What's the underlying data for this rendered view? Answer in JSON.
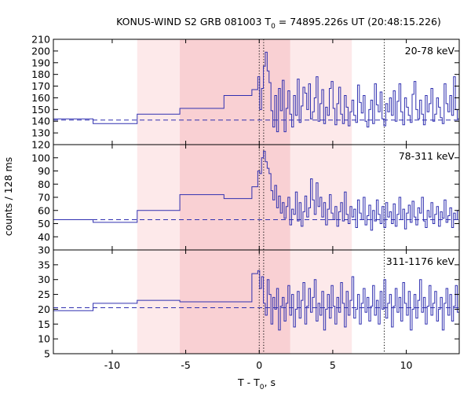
{
  "chart_data": {
    "type": "line",
    "title_main": "KONUS-WIND S2 GRB 081003 T",
    "title_sub": "0",
    "title_rest": " = 74895.226s UT (20:48:15.226)",
    "xlabel_main": "T - T",
    "xlabel_sub": "0",
    "xlabel_rest": ", s",
    "ylabel": "counts / 128 ms",
    "xlim": [
      -14,
      13.6
    ],
    "xticks": [
      -10,
      -5,
      0,
      5,
      10
    ],
    "colors": {
      "line": "#3030b0",
      "shade_light": "#fde9ea",
      "shade_dark": "#f9d0d3"
    },
    "shaded_intervals": {
      "light": [
        -8.3,
        6.3
      ],
      "dark": [
        -5.4,
        2.1
      ]
    },
    "vertical_markers": [
      0,
      0.3,
      8.5
    ],
    "panels": [
      {
        "label": "20-78 keV",
        "ylim": [
          120,
          210
        ],
        "yticks": [
          120,
          130,
          140,
          150,
          160,
          170,
          180,
          190,
          200,
          210
        ],
        "background": 141,
        "coarse_steps": [
          [
            -14,
            142
          ],
          [
            -11.3,
            138
          ],
          [
            -8.3,
            146
          ],
          [
            -5.4,
            151
          ],
          [
            -2.4,
            162
          ],
          [
            -0.5,
            167
          ]
        ],
        "fine_start": -0.1,
        "fine_dt": 0.128,
        "fine_values": [
          178,
          150,
          168,
          187,
          199,
          183,
          173,
          149,
          135,
          162,
          131,
          168,
          149,
          175,
          131,
          151,
          166,
          146,
          135,
          162,
          145,
          176,
          139,
          153,
          169,
          164,
          150,
          172,
          142,
          148,
          160,
          178,
          140,
          155,
          167,
          138,
          152,
          145,
          168,
          174,
          151,
          137,
          155,
          169,
          146,
          138,
          162,
          152,
          136,
          148,
          158,
          145,
          139,
          171,
          156,
          147,
          162,
          140,
          135,
          150,
          158,
          138,
          172,
          154,
          148,
          165,
          142,
          136,
          155,
          148,
          160,
          145,
          166,
          140,
          157,
          172,
          148,
          137,
          160,
          152,
          145,
          139,
          163,
          174,
          150,
          142,
          158,
          146,
          137,
          162,
          148,
          155,
          168,
          140,
          146,
          160,
          152,
          143,
          138,
          172,
          155,
          148,
          162,
          145,
          178,
          150,
          142,
          168,
          155,
          138,
          146,
          160
        ]
      },
      {
        "label": "78-311 keV",
        "ylim": [
          30,
          110
        ],
        "yticks": [
          30,
          40,
          50,
          60,
          70,
          80,
          90,
          100
        ],
        "background": 53,
        "coarse_steps": [
          [
            -14,
            53
          ],
          [
            -11.3,
            51
          ],
          [
            -8.3,
            60
          ],
          [
            -5.4,
            72
          ],
          [
            -2.4,
            69
          ],
          [
            -0.5,
            78
          ]
        ],
        "fine_start": -0.1,
        "fine_dt": 0.128,
        "fine_values": [
          90,
          88,
          100,
          105,
          97,
          92,
          88,
          75,
          68,
          79,
          62,
          71,
          58,
          66,
          54,
          63,
          70,
          49,
          61,
          57,
          74,
          52,
          66,
          48,
          59,
          71,
          55,
          62,
          84,
          68,
          57,
          81,
          63,
          70,
          55,
          66,
          49,
          61,
          72,
          58,
          53,
          63,
          48,
          59,
          66,
          52,
          74,
          57,
          50,
          63,
          55,
          61,
          47,
          68,
          58,
          53,
          70,
          49,
          56,
          64,
          45,
          60,
          52,
          68,
          57,
          50,
          63,
          47,
          66,
          55,
          59,
          50,
          65,
          48,
          57,
          70,
          53,
          61,
          46,
          58,
          64,
          51,
          67,
          55,
          49,
          62,
          58,
          70,
          52,
          47,
          60,
          55,
          66,
          50,
          57,
          63,
          48,
          59,
          54,
          68,
          51,
          56,
          62,
          47,
          58,
          53,
          60,
          45,
          55,
          52,
          58,
          56
        ]
      },
      {
        "label": "311-1176 keV",
        "ylim": [
          5,
          40
        ],
        "yticks": [
          5,
          10,
          15,
          20,
          25,
          30,
          35
        ],
        "background": 20.5,
        "coarse_steps": [
          [
            -14,
            19.5
          ],
          [
            -11.3,
            22
          ],
          [
            -8.3,
            23
          ],
          [
            -5.4,
            22.5
          ],
          [
            -2.4,
            22.5
          ],
          [
            -0.5,
            32
          ]
        ],
        "fine_start": -0.1,
        "fine_dt": 0.128,
        "fine_values": [
          33,
          27,
          31,
          22,
          18,
          30,
          25,
          15,
          24,
          20,
          27,
          13,
          21,
          24,
          16,
          22,
          28,
          18,
          25,
          14,
          20,
          26,
          17,
          23,
          29,
          15,
          21,
          27,
          19,
          24,
          30,
          16,
          22,
          18,
          26,
          13,
          20,
          25,
          17,
          28,
          21,
          15,
          24,
          19,
          29,
          22,
          14,
          26,
          18,
          23,
          31,
          17,
          20,
          25,
          15,
          22,
          27,
          19,
          24,
          16,
          21,
          28,
          18,
          23,
          15,
          26,
          20,
          30,
          17,
          22,
          25,
          14,
          21,
          27,
          19,
          24,
          16,
          29,
          22,
          18,
          26,
          13,
          20,
          25,
          17,
          23,
          30,
          19,
          24,
          15,
          21,
          28,
          18,
          22,
          26,
          16,
          20,
          24,
          13,
          22,
          27,
          18,
          25,
          16,
          21,
          28,
          19,
          23,
          15,
          22,
          20,
          24
        ]
      }
    ]
  }
}
